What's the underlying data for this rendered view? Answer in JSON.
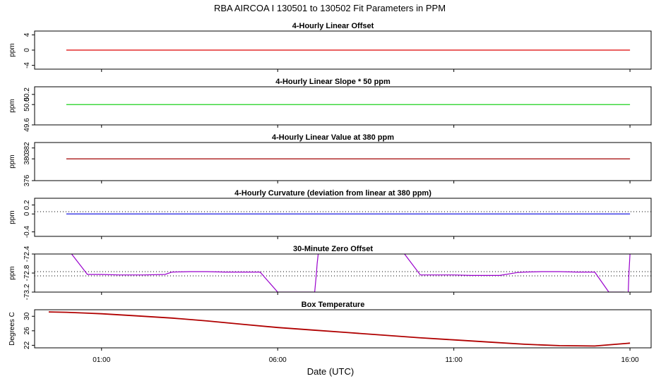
{
  "figure": {
    "title": "RBA   AIRCOA I   130501 to 130502   Fit Parameters in PPM",
    "xlabel": "Date (UTC)",
    "xticks": [
      "01:00",
      "06:00",
      "11:00",
      "16:00"
    ]
  },
  "colors": {
    "red": "#dd0000",
    "green": "#00cc00",
    "darkred": "#a00000",
    "blue": "#0000dd",
    "purple": "#9900cc",
    "boxtemp": "#b00000"
  },
  "chart_data": [
    {
      "type": "line",
      "title": "4-Hourly Linear Offset",
      "ylabel": "ppm",
      "yticks": [
        "-4",
        "0",
        "4"
      ],
      "ytick_values": [
        -4,
        0,
        4
      ],
      "ylim": [
        -5,
        5
      ],
      "xlim_hours": [
        -0.9,
        16.6
      ],
      "series": [
        {
          "x": [
            0.0,
            16.0
          ],
          "y": [
            0,
            0
          ],
          "color": "red"
        }
      ]
    },
    {
      "type": "line",
      "title": "4-Hourly Linear Slope * 50 ppm",
      "ylabel": "ppm",
      "yticks": [
        "49.6",
        "50.0",
        "50.2"
      ],
      "ytick_values": [
        49.6,
        50.0,
        50.2
      ],
      "ylim": [
        49.6,
        50.35
      ],
      "xlim_hours": [
        -0.9,
        16.6
      ],
      "series": [
        {
          "x": [
            0.0,
            16.0
          ],
          "y": [
            50.0,
            50.0
          ],
          "color": "green"
        }
      ]
    },
    {
      "type": "line",
      "title": "4-Hourly Linear Value at 380 ppm",
      "ylabel": "ppm",
      "yticks": [
        "376",
        "380",
        "382"
      ],
      "ytick_values": [
        376,
        380,
        382
      ],
      "ylim": [
        376,
        383
      ],
      "xlim_hours": [
        -0.9,
        16.6
      ],
      "series": [
        {
          "x": [
            0.0,
            16.0
          ],
          "y": [
            380,
            380
          ],
          "color": "darkred"
        }
      ]
    },
    {
      "type": "line",
      "title": "4-Hourly Curvature (deviation from linear at 380 ppm)",
      "ylabel": "ppm",
      "yticks": [
        "-0.4",
        "0",
        "0.2"
      ],
      "ytick_values": [
        -0.4,
        0,
        0.2
      ],
      "ylim": [
        -0.5,
        0.35
      ],
      "xlim_hours": [
        -0.9,
        16.6
      ],
      "reference_lines": [
        {
          "y": 0.05,
          "style": "dotted"
        }
      ],
      "series": [
        {
          "x": [
            0.0,
            16.0
          ],
          "y": [
            0,
            0
          ],
          "color": "blue"
        }
      ]
    },
    {
      "type": "line",
      "title": "30-Minute Zero Offset",
      "ylabel": "ppm",
      "yticks": [
        "-73.2",
        "-72.8",
        "-72.4"
      ],
      "ytick_values": [
        -73.2,
        -72.8,
        -72.4
      ],
      "ylim": [
        -73.2,
        -72.4
      ],
      "xlim_hours": [
        -0.9,
        16.6
      ],
      "reference_lines": [
        {
          "y": -72.77,
          "style": "dotted"
        },
        {
          "y": -72.86,
          "style": "dotted"
        }
      ],
      "series": [
        {
          "color": "purple",
          "x": [
            0.15,
            0.6,
            1.0,
            1.5,
            2.2,
            2.8,
            3.0,
            3.5,
            4.0,
            4.5,
            5.0,
            5.5,
            6.0,
            6.4,
            7.05,
            7.1,
            7.12,
            7.15
          ],
          "y": [
            -72.4,
            -72.83,
            -72.83,
            -72.84,
            -72.84,
            -72.83,
            -72.78,
            -72.77,
            -72.77,
            -72.78,
            -72.78,
            -72.78,
            -73.2,
            -73.2,
            -73.2,
            -72.8,
            -72.6,
            -72.4
          ]
        },
        {
          "color": "purple",
          "x": [
            9.6,
            10.05,
            10.5,
            11.0,
            11.5,
            11.8,
            12.3,
            12.8,
            13.0,
            13.5,
            14.0,
            14.5,
            15.0,
            15.4,
            15.8,
            15.85
          ],
          "y": [
            -72.4,
            -72.84,
            -72.84,
            -72.84,
            -72.85,
            -72.85,
            -72.85,
            -72.79,
            -72.78,
            -72.77,
            -72.77,
            -72.78,
            -72.78,
            -73.2,
            -73.2,
            -73.2
          ]
        },
        {
          "color": "purple",
          "x": [
            15.95,
            15.97,
            16.0
          ],
          "y": [
            -73.2,
            -72.8,
            -72.4
          ]
        }
      ]
    },
    {
      "type": "scatter",
      "title": "Box Temperature",
      "ylabel": "Degrees C",
      "yticks": [
        "22",
        "26",
        "30"
      ],
      "ytick_values": [
        22,
        26,
        30
      ],
      "ylim": [
        21.3,
        31.8
      ],
      "xlim_hours": [
        -0.9,
        16.6
      ],
      "series": [
        {
          "color": "boxtemp",
          "x": [
            -0.5,
            0.0,
            1.0,
            2.0,
            3.0,
            4.0,
            5.0,
            6.0,
            7.0,
            8.0,
            9.0,
            10.0,
            11.0,
            12.0,
            13.0,
            14.0,
            15.0,
            16.0
          ],
          "y": [
            31.2,
            31.1,
            30.7,
            30.1,
            29.5,
            28.7,
            27.8,
            26.9,
            26.2,
            25.5,
            24.8,
            24.1,
            23.5,
            22.9,
            22.3,
            21.9,
            21.8,
            22.6
          ]
        }
      ]
    }
  ]
}
